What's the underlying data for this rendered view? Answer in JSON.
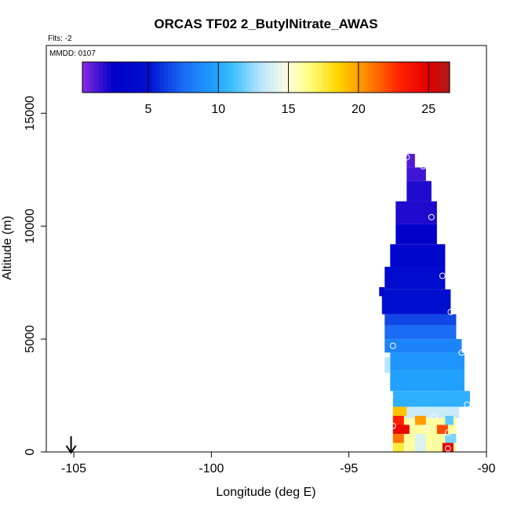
{
  "chart_data": {
    "type": "heatmap",
    "title": "ORCAS TF02 2_ButylNitrate_AWAS",
    "flights_note": "Flts: -2",
    "date_note": "MMDD: 0107",
    "xlabel": "Longitude (deg E)",
    "ylabel": "Altitude (m)",
    "xlim": [
      -106,
      -90
    ],
    "ylim": [
      0,
      18000
    ],
    "x_ticks": [
      -105,
      -100,
      -95,
      -90
    ],
    "x_tick_labels": [
      "-105",
      "-100",
      "-95",
      "-90"
    ],
    "y_ticks": [
      0,
      5000,
      10000,
      15000
    ],
    "y_tick_labels": [
      "0",
      "5000",
      "10000",
      "15000"
    ],
    "colorbar": {
      "min": 0.3,
      "max": 26.5,
      "ticks": [
        5,
        10,
        15,
        20,
        25
      ],
      "tick_labels": [
        "5",
        "10",
        "15",
        "20",
        "25"
      ],
      "color_stops": [
        {
          "v": 0.3,
          "c": "#8a2be2"
        },
        {
          "v": 2.5,
          "c": "#0000c8"
        },
        {
          "v": 5.0,
          "c": "#0010d0"
        },
        {
          "v": 7.5,
          "c": "#1a6cf5"
        },
        {
          "v": 9.5,
          "c": "#1e9bff"
        },
        {
          "v": 11.0,
          "c": "#3cc0ff"
        },
        {
          "v": 13.0,
          "c": "#b8e4ff"
        },
        {
          "v": 15.0,
          "c": "#ffffe0"
        },
        {
          "v": 16.5,
          "c": "#ffff80"
        },
        {
          "v": 18.5,
          "c": "#ffd700"
        },
        {
          "v": 20.5,
          "c": "#ff8c00"
        },
        {
          "v": 23.0,
          "c": "#ff2000"
        },
        {
          "v": 25.0,
          "c": "#e00000"
        },
        {
          "v": 26.5,
          "c": "#b01818"
        }
      ]
    },
    "arrow_longitude": -105.1,
    "curtain": [
      {
        "alt": [
          12600,
          13200
        ],
        "lon": [
          -92.9,
          -92.6
        ],
        "v": 1.2
      },
      {
        "alt": [
          12000,
          12600
        ],
        "lon": [
          -92.9,
          -92.2
        ],
        "v": 1.5
      },
      {
        "alt": [
          11100,
          12000
        ],
        "lon": [
          -92.9,
          -92.0
        ],
        "v": 2.0
      },
      {
        "alt": [
          10100,
          11100
        ],
        "lon": [
          -93.3,
          -91.8
        ],
        "v": 2.0
      },
      {
        "alt": [
          9200,
          10100
        ],
        "lon": [
          -93.3,
          -91.8
        ],
        "v": 2.8
      },
      {
        "alt": [
          8200,
          9200
        ],
        "lon": [
          -93.5,
          -91.5
        ],
        "v": 3.5
      },
      {
        "alt": [
          7200,
          8200
        ],
        "lon": [
          -93.7,
          -91.5
        ],
        "v": 4.2
      },
      {
        "alt": [
          6100,
          7200
        ],
        "lon": [
          -93.8,
          -91.3
        ],
        "v": 4.8
      },
      {
        "alt": [
          5600,
          6100
        ],
        "lon": [
          -93.7,
          -91.1
        ],
        "v": 6.5
      },
      {
        "alt": [
          5000,
          5600
        ],
        "lon": [
          -93.7,
          -91.1
        ],
        "v": 7.5
      },
      {
        "alt": [
          4400,
          5000
        ],
        "lon": [
          -93.7,
          -90.9
        ],
        "v": 8.5
      },
      {
        "alt": [
          3600,
          4400
        ],
        "lon": [
          -93.5,
          -90.8
        ],
        "v": 9.3
      },
      {
        "alt": [
          2700,
          3600
        ],
        "lon": [
          -93.5,
          -90.8
        ],
        "v": 9.7
      },
      {
        "alt": [
          2000,
          2700
        ],
        "lon": [
          -93.4,
          -90.6
        ],
        "v": 10.3
      },
      {
        "alt": [
          1500,
          2000
        ],
        "lon": [
          -93.4,
          -91.0
        ],
        "v": 13.5
      },
      {
        "alt": [
          0,
          1500
        ],
        "lon": [
          -93.4,
          -91.1
        ],
        "v": 16.0
      }
    ],
    "hot_patches": [
      {
        "alt": [
          1600,
          2000
        ],
        "lon": [
          -93.4,
          -92.9
        ],
        "v": 19.0
      },
      {
        "alt": [
          1200,
          1600
        ],
        "lon": [
          -93.4,
          -93.0
        ],
        "v": 23.0
      },
      {
        "alt": [
          800,
          1200
        ],
        "lon": [
          -93.4,
          -92.8
        ],
        "v": 24.5
      },
      {
        "alt": [
          400,
          800
        ],
        "lon": [
          -93.4,
          -93.0
        ],
        "v": 21.0
      },
      {
        "alt": [
          0,
          400
        ],
        "lon": [
          -93.4,
          -93.0
        ],
        "v": 17.5
      },
      {
        "alt": [
          1200,
          1600
        ],
        "lon": [
          -92.6,
          -92.2
        ],
        "v": 20.0
      },
      {
        "alt": [
          0,
          800
        ],
        "lon": [
          -92.6,
          -92.2
        ],
        "v": 14.0
      },
      {
        "alt": [
          800,
          1200
        ],
        "lon": [
          -91.8,
          -91.4
        ],
        "v": 22.0
      },
      {
        "alt": [
          0,
          400
        ],
        "lon": [
          -91.6,
          -91.2
        ],
        "v": 25.0
      },
      {
        "alt": [
          400,
          800
        ],
        "lon": [
          -91.5,
          -91.1
        ],
        "v": 12.0
      },
      {
        "alt": [
          1200,
          1600
        ],
        "lon": [
          -91.5,
          -91.2
        ],
        "v": 11.5
      },
      {
        "alt": [
          3500,
          4200
        ],
        "lon": [
          -93.7,
          -93.5
        ],
        "v": 13.0
      },
      {
        "alt": [
          6900,
          7300
        ],
        "lon": [
          -93.9,
          -93.7
        ],
        "v": 3.5
      }
    ],
    "sample_points": [
      {
        "lon": -92.9,
        "alt": 13050
      },
      {
        "lon": -92.3,
        "alt": 12650
      },
      {
        "lon": -92.0,
        "alt": 10400
      },
      {
        "lon": -91.6,
        "alt": 7800
      },
      {
        "lon": -91.3,
        "alt": 6200
      },
      {
        "lon": -93.4,
        "alt": 4700
      },
      {
        "lon": -90.9,
        "alt": 4400
      },
      {
        "lon": -93.5,
        "alt": 2450
      },
      {
        "lon": -90.7,
        "alt": 2100
      },
      {
        "lon": -93.4,
        "alt": 1150
      },
      {
        "lon": -92.7,
        "alt": 1300
      },
      {
        "lon": -91.9,
        "alt": 1550
      },
      {
        "lon": -91.4,
        "alt": 850
      },
      {
        "lon": -92.2,
        "alt": 1050
      },
      {
        "lon": -91.4,
        "alt": 150
      }
    ]
  }
}
